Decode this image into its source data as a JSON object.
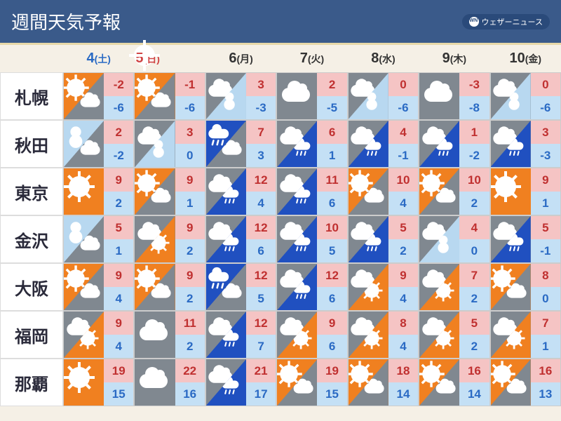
{
  "header": {
    "title": "週間天気予報",
    "brand": "ウェザーニュース"
  },
  "colors": {
    "sunny": "#f08020",
    "cloudy": "#808890",
    "rain": "#2050c0",
    "snow": "#b8d8f0",
    "hi_bg": "#f5c4c4",
    "hi_fg": "#c03030",
    "lo_bg": "#c4e0f5",
    "lo_fg": "#2a6ac4",
    "header_bg": "#3a5a8a",
    "page_bg": "#f5f0e6"
  },
  "days": [
    {
      "num": "4",
      "dow": "(土)",
      "cls": "sat"
    },
    {
      "num": "5",
      "dow": "(日)",
      "cls": "sun"
    },
    {
      "num": "6",
      "dow": "(月)",
      "cls": "wd"
    },
    {
      "num": "7",
      "dow": "(火)",
      "cls": "wd"
    },
    {
      "num": "8",
      "dow": "(水)",
      "cls": "wd"
    },
    {
      "num": "9",
      "dow": "(木)",
      "cls": "wd"
    },
    {
      "num": "10",
      "dow": "(金)",
      "cls": "wd"
    }
  ],
  "cities": [
    {
      "name": "札幌",
      "cells": [
        {
          "w1": "sunny",
          "w2": "cloudy",
          "hi": -2,
          "lo": -6
        },
        {
          "w1": "sunny",
          "w2": "cloudy",
          "hi": -1,
          "lo": -6
        },
        {
          "w1": "cloudy",
          "w2": "snow",
          "hi": 3,
          "lo": -3
        },
        {
          "w1": "cloudy",
          "w2": null,
          "hi": 2,
          "lo": -5
        },
        {
          "w1": "cloudy",
          "w2": "snow",
          "hi": 0,
          "lo": -6
        },
        {
          "w1": "cloudy",
          "w2": null,
          "hi": -3,
          "lo": -8
        },
        {
          "w1": "cloudy",
          "w2": "snow",
          "hi": 0,
          "lo": -6
        }
      ]
    },
    {
      "name": "秋田",
      "cells": [
        {
          "w1": "snow",
          "w2": "cloudy",
          "hi": 2,
          "lo": -2
        },
        {
          "w1": "cloudy",
          "w2": "snow",
          "hi": 3,
          "lo": 0
        },
        {
          "w1": "rain",
          "w2": "cloudy",
          "hi": 7,
          "lo": 3
        },
        {
          "w1": "cloudy",
          "w2": "rain",
          "hi": 6,
          "lo": 1
        },
        {
          "w1": "cloudy",
          "w2": "rain",
          "hi": 4,
          "lo": -1
        },
        {
          "w1": "cloudy",
          "w2": "rain",
          "hi": 1,
          "lo": -2
        },
        {
          "w1": "cloudy",
          "w2": "rain",
          "hi": 3,
          "lo": -3
        }
      ]
    },
    {
      "name": "東京",
      "cells": [
        {
          "w1": "sunny",
          "w2": null,
          "hi": 9,
          "lo": 2
        },
        {
          "w1": "sunny",
          "w2": "cloudy",
          "hi": 9,
          "lo": 1
        },
        {
          "w1": "cloudy",
          "w2": "rain",
          "hi": 12,
          "lo": 4
        },
        {
          "w1": "cloudy",
          "w2": "rain",
          "hi": 11,
          "lo": 6
        },
        {
          "w1": "sunny",
          "w2": "cloudy",
          "hi": 10,
          "lo": 4
        },
        {
          "w1": "sunny",
          "w2": "cloudy",
          "hi": 10,
          "lo": 2
        },
        {
          "w1": "sunny",
          "w2": null,
          "hi": 9,
          "lo": 1
        }
      ]
    },
    {
      "name": "金沢",
      "cells": [
        {
          "w1": "snow",
          "w2": "cloudy",
          "hi": 5,
          "lo": 1
        },
        {
          "w1": "cloudy",
          "w2": "sunny",
          "hi": 9,
          "lo": 2
        },
        {
          "w1": "cloudy",
          "w2": "rain",
          "hi": 12,
          "lo": 6
        },
        {
          "w1": "cloudy",
          "w2": "rain",
          "hi": 10,
          "lo": 5
        },
        {
          "w1": "cloudy",
          "w2": "rain",
          "hi": 5,
          "lo": 2
        },
        {
          "w1": "cloudy",
          "w2": "snow",
          "hi": 4,
          "lo": 0
        },
        {
          "w1": "cloudy",
          "w2": "rain",
          "hi": 5,
          "lo": -1
        }
      ]
    },
    {
      "name": "大阪",
      "cells": [
        {
          "w1": "sunny",
          "w2": "cloudy",
          "hi": 9,
          "lo": 4
        },
        {
          "w1": "sunny",
          "w2": "cloudy",
          "hi": 9,
          "lo": 2
        },
        {
          "w1": "rain",
          "w2": "cloudy",
          "hi": 12,
          "lo": 5
        },
        {
          "w1": "cloudy",
          "w2": "rain",
          "hi": 12,
          "lo": 6
        },
        {
          "w1": "cloudy",
          "w2": "sunny",
          "hi": 9,
          "lo": 4
        },
        {
          "w1": "cloudy",
          "w2": "sunny",
          "hi": 7,
          "lo": 2
        },
        {
          "w1": "sunny",
          "w2": "cloudy",
          "hi": 8,
          "lo": 0
        }
      ]
    },
    {
      "name": "福岡",
      "cells": [
        {
          "w1": "cloudy",
          "w2": "sunny",
          "hi": 9,
          "lo": 4
        },
        {
          "w1": "cloudy",
          "w2": null,
          "hi": 11,
          "lo": 2
        },
        {
          "w1": "cloudy",
          "w2": "rain",
          "hi": 12,
          "lo": 7
        },
        {
          "w1": "cloudy",
          "w2": "sunny",
          "hi": 9,
          "lo": 6
        },
        {
          "w1": "cloudy",
          "w2": "sunny",
          "hi": 8,
          "lo": 4
        },
        {
          "w1": "cloudy",
          "w2": "sunny",
          "hi": 5,
          "lo": 2
        },
        {
          "w1": "cloudy",
          "w2": "sunny",
          "hi": 7,
          "lo": 1
        }
      ]
    },
    {
      "name": "那覇",
      "cells": [
        {
          "w1": "sunny",
          "w2": null,
          "hi": 19,
          "lo": 15
        },
        {
          "w1": "cloudy",
          "w2": null,
          "hi": 22,
          "lo": 16
        },
        {
          "w1": "cloudy",
          "w2": "rain",
          "hi": 21,
          "lo": 17
        },
        {
          "w1": "sunny",
          "w2": "cloudy",
          "hi": 19,
          "lo": 15
        },
        {
          "w1": "sunny",
          "w2": "cloudy",
          "hi": 18,
          "lo": 14
        },
        {
          "w1": "sunny",
          "w2": "cloudy",
          "hi": 16,
          "lo": 14
        },
        {
          "w1": "sunny",
          "w2": "cloudy",
          "hi": 16,
          "lo": 13
        }
      ]
    }
  ]
}
